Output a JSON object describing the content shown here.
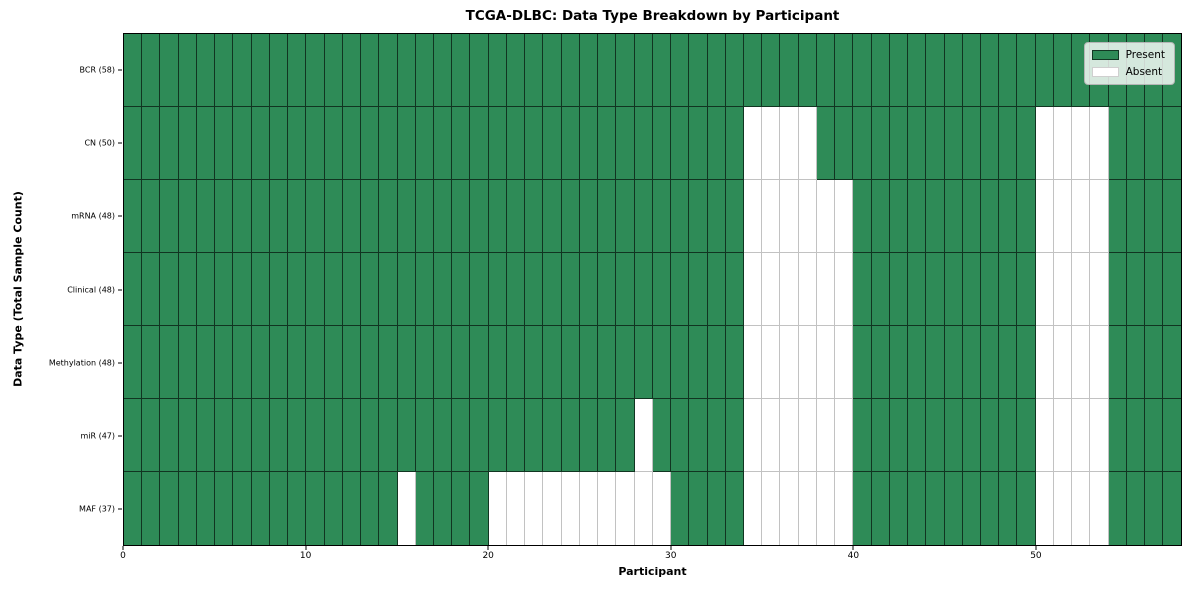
{
  "title": "TCGA-DLBC: Data Type Breakdown by Participant",
  "xlabel": "Participant",
  "ylabel": "Data Type (Total Sample Count)",
  "legend": {
    "present_label": "Present",
    "absent_label": "Absent",
    "position": "upper right"
  },
  "colors": {
    "present": "#2e8b57",
    "absent": "#ffffff",
    "cell_edge_on_present": "rgba(0,0,0,0.62)",
    "cell_edge_on_absent": "#c2c2c2",
    "spine": "#000000"
  },
  "chart_data": {
    "type": "heatmap",
    "title": "TCGA-DLBC: Data Type Breakdown by Participant",
    "xlabel": "Participant",
    "ylabel": "Data Type (Total Sample Count)",
    "n_participants": 58,
    "x_range": [
      0,
      58
    ],
    "x_tick_values": [
      0,
      10,
      20,
      30,
      40,
      50
    ],
    "x_tick_labels": [
      "0",
      "10",
      "20",
      "30",
      "40",
      "50"
    ],
    "grid": "cell-borders",
    "legend_entries": [
      "Present",
      "Absent"
    ],
    "value_encoding": {
      "present": 1,
      "absent": 0
    },
    "rows": [
      {
        "name": "BCR",
        "label": "BCR (58)",
        "total_sample_count": 58,
        "absent_participants": []
      },
      {
        "name": "CN",
        "label": "CN (50)",
        "total_sample_count": 50,
        "absent_participants": [
          34,
          35,
          36,
          37,
          50,
          51,
          52,
          53
        ]
      },
      {
        "name": "mRNA",
        "label": "mRNA (48)",
        "total_sample_count": 48,
        "absent_participants": [
          34,
          35,
          36,
          37,
          38,
          39,
          50,
          51,
          52,
          53
        ]
      },
      {
        "name": "Clinical",
        "label": "Clinical (48)",
        "total_sample_count": 48,
        "absent_participants": [
          34,
          35,
          36,
          37,
          38,
          39,
          50,
          51,
          52,
          53
        ]
      },
      {
        "name": "Methylation",
        "label": "Methylation (48)",
        "total_sample_count": 48,
        "absent_participants": [
          34,
          35,
          36,
          37,
          38,
          39,
          50,
          51,
          52,
          53
        ]
      },
      {
        "name": "miR",
        "label": "miR (47)",
        "total_sample_count": 47,
        "absent_participants": [
          28,
          34,
          35,
          36,
          37,
          38,
          39,
          50,
          51,
          52,
          53
        ]
      },
      {
        "name": "MAF",
        "label": "MAF (37)",
        "total_sample_count": 37,
        "absent_participants": [
          15,
          20,
          21,
          22,
          23,
          24,
          25,
          26,
          27,
          28,
          29,
          34,
          35,
          36,
          37,
          38,
          39,
          50,
          51,
          52,
          53
        ]
      }
    ]
  }
}
